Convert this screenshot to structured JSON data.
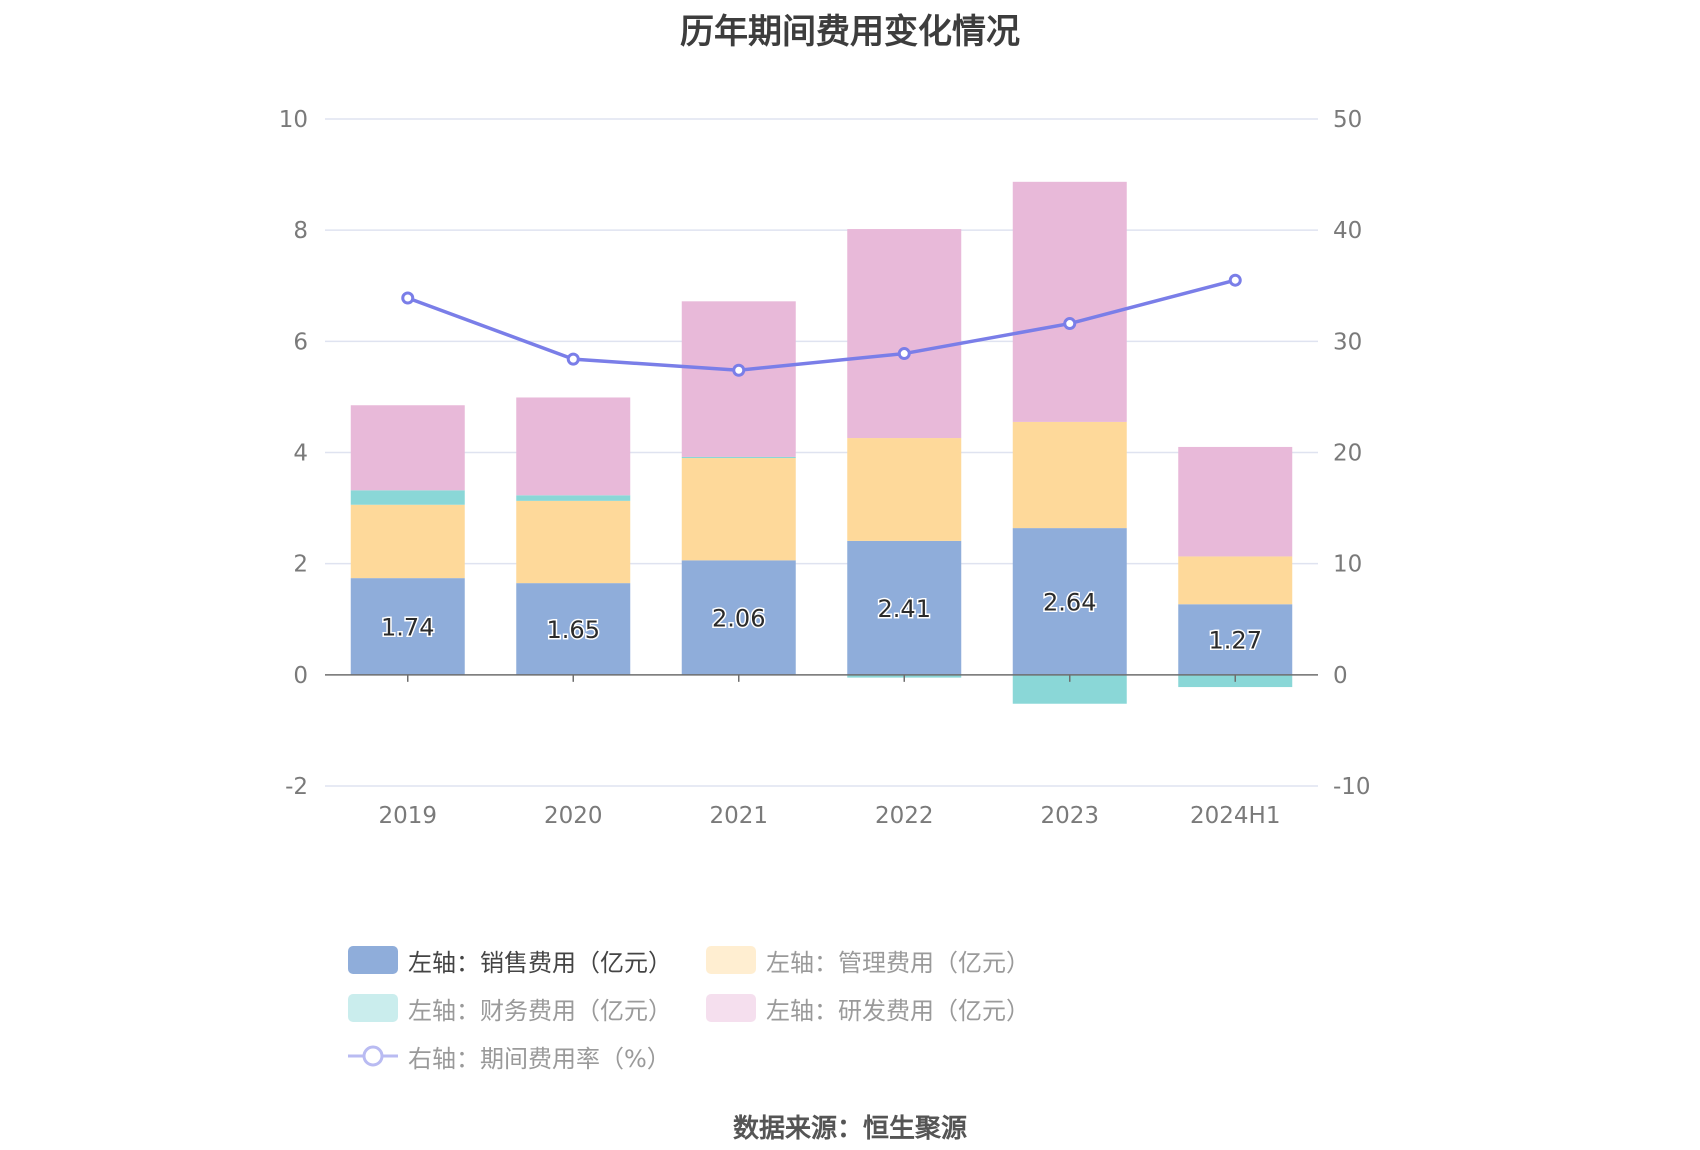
{
  "title": "历年期间费用变化情况",
  "source": "数据来源：恒生聚源",
  "chart_data": {
    "type": "bar",
    "title": "历年期间费用变化情况",
    "categories": [
      "2019",
      "2020",
      "2021",
      "2022",
      "2023",
      "2024H1"
    ],
    "left_axis": {
      "ylim": [
        -2,
        10
      ],
      "ticks": [
        "-2",
        "0",
        "2",
        "4",
        "6",
        "8",
        "10"
      ]
    },
    "right_axis": {
      "ylim": [
        -10,
        50
      ],
      "ticks": [
        "-10",
        "0",
        "10",
        "20",
        "30",
        "40",
        "50"
      ]
    },
    "series": [
      {
        "name": "左轴：销售费用（亿元）",
        "type": "bar",
        "axis": "left",
        "color": "#8fadda",
        "values": [
          1.74,
          1.65,
          2.06,
          2.41,
          2.64,
          1.27
        ],
        "labels": [
          "1.74",
          "1.65",
          "2.06",
          "2.41",
          "2.64",
          "1.27"
        ]
      },
      {
        "name": "左轴：管理费用（亿元）",
        "type": "bar",
        "axis": "left",
        "color": "#fed99a",
        "values": [
          1.32,
          1.48,
          1.84,
          1.85,
          1.91,
          0.86
        ]
      },
      {
        "name": "左轴：财务费用（亿元）",
        "type": "bar",
        "axis": "left",
        "color": "#8ad7d7",
        "values": [
          0.26,
          0.1,
          0.02,
          -0.05,
          -0.52,
          -0.22
        ]
      },
      {
        "name": "左轴：研发费用（亿元）",
        "type": "bar",
        "axis": "left",
        "color": "#e8b9d9",
        "values": [
          1.53,
          1.76,
          2.8,
          3.76,
          4.32,
          1.97
        ]
      },
      {
        "name": "右轴：期间费用率（%）",
        "type": "line",
        "axis": "right",
        "color": "#7a7ee8",
        "values": [
          33.9,
          28.4,
          27.4,
          28.9,
          31.6,
          35.5
        ]
      }
    ],
    "grid": true,
    "legend_position": "bottom"
  }
}
